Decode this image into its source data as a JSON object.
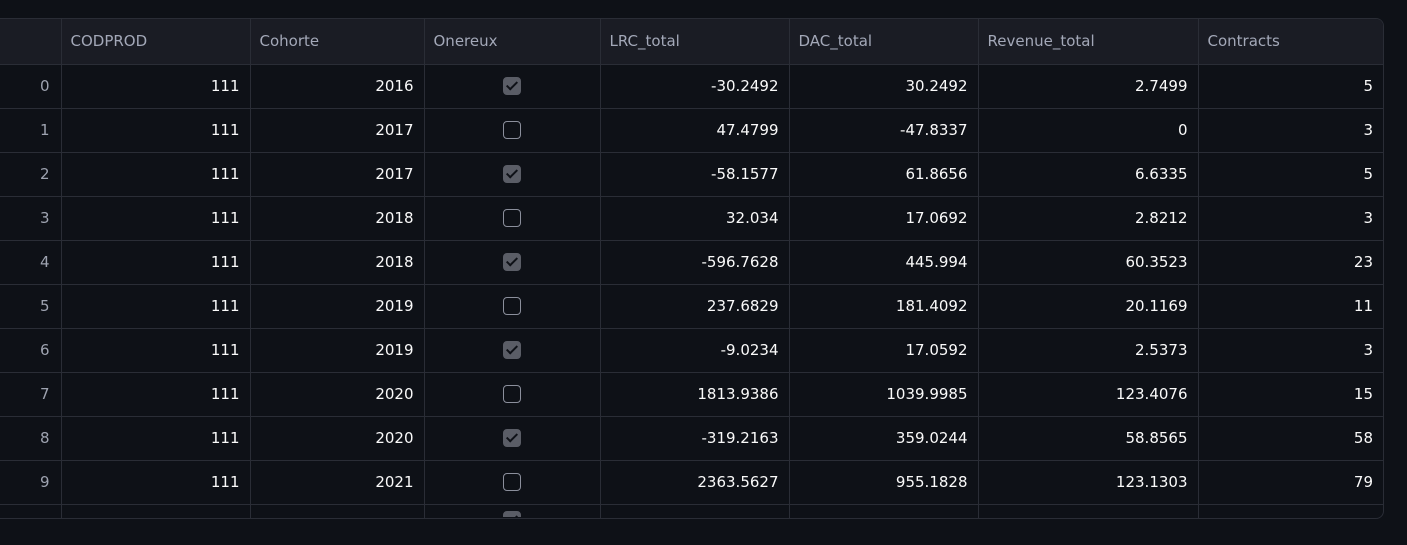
{
  "table": {
    "columns": [
      "",
      "CODPROD",
      "Cohorte",
      "Onereux",
      "LRC_total",
      "DAC_total",
      "Revenue_total",
      "Contracts"
    ],
    "rows": [
      {
        "index": "0",
        "CODPROD": "111",
        "Cohorte": "2016",
        "Onereux": true,
        "LRC_total": "-30.2492",
        "DAC_total": "30.2492",
        "Revenue_total": "2.7499",
        "Contracts": "5"
      },
      {
        "index": "1",
        "CODPROD": "111",
        "Cohorte": "2017",
        "Onereux": false,
        "LRC_total": "47.4799",
        "DAC_total": "-47.8337",
        "Revenue_total": "0",
        "Contracts": "3"
      },
      {
        "index": "2",
        "CODPROD": "111",
        "Cohorte": "2017",
        "Onereux": true,
        "LRC_total": "-58.1577",
        "DAC_total": "61.8656",
        "Revenue_total": "6.6335",
        "Contracts": "5"
      },
      {
        "index": "3",
        "CODPROD": "111",
        "Cohorte": "2018",
        "Onereux": false,
        "LRC_total": "32.034",
        "DAC_total": "17.0692",
        "Revenue_total": "2.8212",
        "Contracts": "3"
      },
      {
        "index": "4",
        "CODPROD": "111",
        "Cohorte": "2018",
        "Onereux": true,
        "LRC_total": "-596.7628",
        "DAC_total": "445.994",
        "Revenue_total": "60.3523",
        "Contracts": "23"
      },
      {
        "index": "5",
        "CODPROD": "111",
        "Cohorte": "2019",
        "Onereux": false,
        "LRC_total": "237.6829",
        "DAC_total": "181.4092",
        "Revenue_total": "20.1169",
        "Contracts": "11"
      },
      {
        "index": "6",
        "CODPROD": "111",
        "Cohorte": "2019",
        "Onereux": true,
        "LRC_total": "-9.0234",
        "DAC_total": "17.0592",
        "Revenue_total": "2.5373",
        "Contracts": "3"
      },
      {
        "index": "7",
        "CODPROD": "111",
        "Cohorte": "2020",
        "Onereux": false,
        "LRC_total": "1813.9386",
        "DAC_total": "1039.9985",
        "Revenue_total": "123.4076",
        "Contracts": "15"
      },
      {
        "index": "8",
        "CODPROD": "111",
        "Cohorte": "2020",
        "Onereux": true,
        "LRC_total": "-319.2163",
        "DAC_total": "359.0244",
        "Revenue_total": "58.8565",
        "Contracts": "58"
      },
      {
        "index": "9",
        "CODPROD": "111",
        "Cohorte": "2021",
        "Onereux": false,
        "LRC_total": "2363.5627",
        "DAC_total": "955.1828",
        "Revenue_total": "123.1303",
        "Contracts": "79"
      }
    ],
    "partial_row_onereux": true
  },
  "colors": {
    "background": "#0e1117",
    "header_bg": "#1a1c24",
    "border": "#2a2d36",
    "text": "#fafafa",
    "muted_text": "#a3a8b8",
    "checkbox_checked": "#5a5d66"
  },
  "icons": {
    "checked": "checkbox-checked-icon",
    "unchecked": "checkbox-unchecked-icon"
  }
}
